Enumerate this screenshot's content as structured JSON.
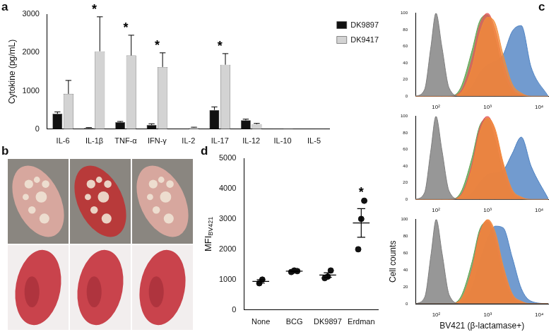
{
  "chart_data": [
    {
      "panel": "a",
      "type": "bar",
      "categories": [
        "IL-6",
        "IL-1β",
        "TNF-α",
        "IFN-γ",
        "IL-2",
        "IL-17",
        "IL-12",
        "IL-10",
        "IL-5"
      ],
      "ylabel": "Cytokine (pg/mL)",
      "ylim": [
        0,
        3000
      ],
      "yticks": [
        0,
        1000,
        2000,
        3000
      ],
      "grid": false,
      "legend": "top right",
      "series": [
        {
          "name": "DK9897",
          "color": "#111111",
          "values": [
            400,
            30,
            180,
            110,
            0,
            500,
            230,
            5,
            0
          ],
          "errors": [
            50,
            10,
            20,
            30,
            0,
            80,
            30,
            0,
            0
          ]
        },
        {
          "name": "DK9417",
          "color": "#d3d3d3",
          "values": [
            920,
            2030,
            1920,
            1620,
            40,
            1680,
            130,
            10,
            5
          ],
          "errors": [
            350,
            900,
            530,
            370,
            10,
            290,
            20,
            0,
            0
          ]
        }
      ],
      "annotations": [
        {
          "category": "IL-1β",
          "text": "*"
        },
        {
          "category": "TNF-α",
          "text": "*"
        },
        {
          "category": "IFN-γ",
          "text": "*"
        },
        {
          "category": "IL-17",
          "text": "*"
        }
      ]
    },
    {
      "panel": "c",
      "type": "line",
      "log": "x",
      "grid": false,
      "x": [
        40,
        60,
        80,
        100,
        130,
        180,
        300,
        500,
        700,
        1000,
        1400,
        2000,
        3000,
        4500,
        7000,
        15000
      ],
      "xlim": [
        40,
        15000
      ],
      "xticks": [
        {
          "value": 100,
          "label": "10²"
        },
        {
          "value": 1000,
          "label": "10³"
        },
        {
          "value": 10000,
          "label": "10⁴"
        }
      ],
      "ylim": [
        0,
        100
      ],
      "yticks": [
        0,
        20,
        40,
        60,
        80,
        100
      ],
      "series": [
        {
          "color": "#7a7a7a",
          "values": [
            0,
            8,
            60,
            100,
            60,
            10,
            0,
            0,
            0,
            0,
            0,
            0,
            0,
            0,
            0,
            0
          ]
        },
        {
          "color": "#f28c3a",
          "values": [
            0,
            0,
            0,
            0,
            0,
            0,
            4,
            35,
            75,
            95,
            88,
            50,
            15,
            4,
            0,
            0
          ]
        },
        {
          "color": "#e4575a",
          "values": [
            0,
            0,
            0,
            0,
            0,
            0,
            6,
            45,
            85,
            100,
            80,
            40,
            10,
            2,
            0,
            0
          ]
        },
        {
          "color": "#5fa04e",
          "values": [
            0,
            0,
            0,
            0,
            0,
            0,
            10,
            55,
            90,
            98,
            70,
            30,
            6,
            1,
            0,
            0
          ]
        },
        {
          "color": "#4a7fc1",
          "values": [
            0,
            0,
            0,
            0,
            0,
            0,
            1,
            12,
            28,
            38,
            42,
            50,
            78,
            85,
            35,
            0
          ]
        }
      ]
    },
    {
      "type": "line",
      "log": "x",
      "grid": false,
      "x": [
        40,
        60,
        80,
        100,
        130,
        180,
        300,
        500,
        700,
        1000,
        1400,
        2000,
        3000,
        4500,
        7000,
        15000
      ],
      "xlim": [
        40,
        15000
      ],
      "xticks": [
        {
          "value": 100,
          "label": "10²"
        },
        {
          "value": 1000,
          "label": "10³"
        },
        {
          "value": 10000,
          "label": "10⁴"
        }
      ],
      "ylim": [
        0,
        100
      ],
      "yticks": [
        0,
        20,
        40,
        60,
        80,
        100
      ],
      "series": [
        {
          "color": "#7a7a7a",
          "values": [
            0,
            8,
            60,
            100,
            60,
            10,
            0,
            0,
            0,
            0,
            0,
            0,
            0,
            0,
            0,
            0
          ]
        },
        {
          "color": "#f28c3a",
          "values": [
            0,
            0,
            0,
            0,
            0,
            0,
            4,
            38,
            80,
            98,
            85,
            45,
            12,
            3,
            0,
            0
          ]
        },
        {
          "color": "#e4575a",
          "values": [
            0,
            0,
            0,
            0,
            0,
            0,
            5,
            42,
            85,
            100,
            82,
            42,
            10,
            2,
            0,
            0
          ]
        },
        {
          "color": "#5fa04e",
          "values": [
            0,
            0,
            0,
            0,
            0,
            0,
            8,
            50,
            88,
            97,
            72,
            32,
            7,
            1,
            0,
            0
          ]
        },
        {
          "color": "#4a7fc1",
          "values": [
            0,
            0,
            0,
            0,
            0,
            0,
            1,
            8,
            20,
            30,
            32,
            35,
            55,
            75,
            40,
            1
          ]
        }
      ]
    },
    {
      "type": "line",
      "log": "x",
      "grid": false,
      "x": [
        40,
        60,
        80,
        100,
        130,
        180,
        300,
        500,
        700,
        1000,
        1400,
        2000,
        3000,
        4500,
        7000,
        15000
      ],
      "xlim": [
        40,
        15000
      ],
      "xticks": [
        {
          "value": 100,
          "label": "10²"
        },
        {
          "value": 1000,
          "label": "10³"
        },
        {
          "value": 10000,
          "label": "10⁴"
        }
      ],
      "ylim": [
        0,
        100
      ],
      "yticks": [
        0,
        20,
        40,
        60,
        80,
        100
      ],
      "xlabel": "BV421 (β-lactamase+)",
      "ylabel": "Cell counts",
      "series": [
        {
          "color": "#7a7a7a",
          "values": [
            0,
            8,
            60,
            100,
            60,
            10,
            0,
            0,
            0,
            0,
            0,
            0,
            0,
            0,
            0,
            0
          ]
        },
        {
          "color": "#f28c3a",
          "values": [
            0,
            0,
            0,
            0,
            0,
            0,
            5,
            40,
            82,
            100,
            85,
            45,
            12,
            3,
            0,
            0
          ]
        },
        {
          "color": "#e4575a",
          "values": [
            0,
            0,
            0,
            0,
            0,
            0,
            5,
            42,
            84,
            99,
            80,
            40,
            10,
            2,
            0,
            0
          ]
        },
        {
          "color": "#5fa04e",
          "values": [
            0,
            0,
            0,
            0,
            0,
            0,
            8,
            50,
            88,
            97,
            72,
            32,
            7,
            1,
            0,
            0
          ]
        },
        {
          "color": "#4a7fc1",
          "values": [
            0,
            0,
            0,
            0,
            0,
            0,
            2,
            20,
            50,
            78,
            92,
            90,
            55,
            18,
            3,
            0
          ]
        }
      ]
    },
    {
      "panel": "d",
      "type": "scatter",
      "categories": [
        "None",
        "BCG",
        "DK9897",
        "Erdman"
      ],
      "points": [
        [
          880,
          1000
        ],
        [
          1250,
          1300,
          1280
        ],
        [
          1050,
          1100,
          1300
        ],
        [
          2000,
          3000,
          3600
        ]
      ],
      "means": [
        940,
        1277,
        1150,
        2867
      ],
      "errors": [
        60,
        15,
        76,
        470
      ],
      "color": "#111111",
      "grid": false,
      "ylabel": "MFI",
      "ylabel_subscript": "BV421",
      "ylim": [
        0,
        5000
      ],
      "yticks": [
        0,
        1000,
        2000,
        3000,
        4000,
        5000
      ],
      "annotations": [
        {
          "category": "Erdman",
          "text": "*"
        }
      ]
    }
  ],
  "photos": {
    "panel": "b",
    "rows": 2,
    "columns": 3
  }
}
